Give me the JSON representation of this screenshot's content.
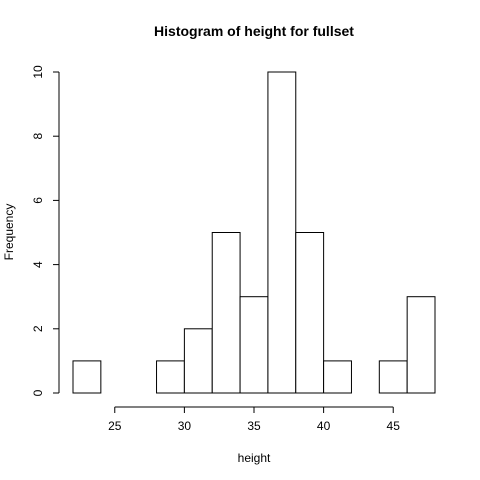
{
  "chart_data": {
    "type": "bar",
    "title": "Histogram of height for fullset",
    "xlabel": "height",
    "ylabel": "Frequency",
    "bins": [
      {
        "start": 22,
        "end": 24,
        "count": 1
      },
      {
        "start": 24,
        "end": 26,
        "count": 0
      },
      {
        "start": 26,
        "end": 28,
        "count": 0
      },
      {
        "start": 28,
        "end": 30,
        "count": 1
      },
      {
        "start": 30,
        "end": 32,
        "count": 2
      },
      {
        "start": 32,
        "end": 34,
        "count": 5
      },
      {
        "start": 34,
        "end": 36,
        "count": 3
      },
      {
        "start": 36,
        "end": 38,
        "count": 10
      },
      {
        "start": 38,
        "end": 40,
        "count": 5
      },
      {
        "start": 40,
        "end": 42,
        "count": 1
      },
      {
        "start": 42,
        "end": 44,
        "count": 0
      },
      {
        "start": 44,
        "end": 46,
        "count": 1
      },
      {
        "start": 46,
        "end": 48,
        "count": 3
      }
    ],
    "xlim": [
      22,
      48
    ],
    "ylim": [
      0,
      10
    ],
    "xticks": [
      25,
      30,
      35,
      40,
      45
    ],
    "yticks": [
      0,
      2,
      4,
      6,
      8,
      10
    ],
    "grid": false
  }
}
